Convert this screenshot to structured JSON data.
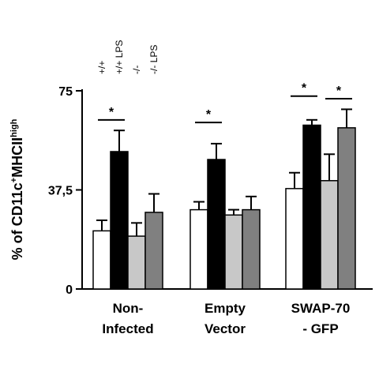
{
  "chart_data": {
    "type": "bar",
    "ylabel": {
      "prefix": "% of CD11c",
      "sup1": "+",
      "mid": "MHCII",
      "sup2": "high"
    },
    "ylim": [
      0,
      75
    ],
    "yticks": [
      {
        "value": 0,
        "label": "0"
      },
      {
        "value": 37.5,
        "label": "37,5"
      },
      {
        "value": 75,
        "label": "75"
      }
    ],
    "categories": [
      {
        "lines": [
          "Non-",
          "Infected"
        ]
      },
      {
        "lines": [
          "Empty",
          "Vector"
        ]
      },
      {
        "lines": [
          "SWAP-70",
          "- GFP"
        ]
      }
    ],
    "legend_labels": [
      "+/+",
      "+/+ LPS",
      "-/-",
      "-/- LPS"
    ],
    "series": [
      {
        "name": "+/+",
        "color": "#ffffff",
        "values": [
          22,
          30,
          38
        ],
        "errors": [
          4,
          3,
          6
        ]
      },
      {
        "name": "+/+ LPS",
        "color": "#000000",
        "values": [
          52,
          49,
          62
        ],
        "errors": [
          8,
          6,
          2
        ]
      },
      {
        "name": "-/-",
        "color": "#c8c8c8",
        "values": [
          20,
          28,
          41
        ],
        "errors": [
          5,
          2,
          10
        ]
      },
      {
        "name": "-/- LPS",
        "color": "#808080",
        "values": [
          29,
          30,
          61
        ],
        "errors": [
          7,
          5,
          7
        ]
      }
    ],
    "significance": [
      {
        "category": 0,
        "from_series": 0,
        "to_series": 1,
        "level": 64,
        "label": "*"
      },
      {
        "category": 1,
        "from_series": 0,
        "to_series": 1,
        "level": 63,
        "label": "*"
      },
      {
        "category": 2,
        "from_series": 0,
        "to_series": 1,
        "level": 73,
        "label": "*"
      },
      {
        "category": 2,
        "from_series": 2,
        "to_series": 3,
        "level": 72,
        "label": "*"
      }
    ],
    "grid": false
  }
}
